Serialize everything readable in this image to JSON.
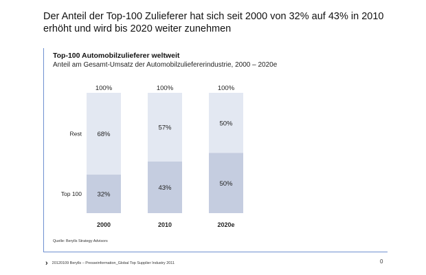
{
  "headline": "Der Anteil der Top-100 Zulieferer hat sich seit 2000 von 32% auf 43% in 2010 erhöht und wird bis 2020 weiter zunehmen",
  "chart_data": {
    "type": "bar",
    "stacked": true,
    "title": "Top-100 Automobilzulieferer weltweit",
    "subtitle": "Anteil am Gesamt-Umsatz der Automobilzuliefererindustrie, 2000 – 2020e",
    "categories": [
      "2000",
      "2010",
      "2020e"
    ],
    "totals_label": "100%",
    "ylim": [
      0,
      100
    ],
    "series": [
      {
        "name": "Top 100",
        "values": [
          32,
          43,
          50
        ],
        "labels": [
          "32%",
          "43%",
          "50%"
        ],
        "color": "#c5cde0"
      },
      {
        "name": "Rest",
        "values": [
          68,
          57,
          50
        ],
        "labels": [
          "68%",
          "57%",
          "50%"
        ],
        "color": "#e3e8f2"
      }
    ]
  },
  "source": "Quelle: Berylls Strategy Advisors",
  "footer": {
    "logo": "›",
    "text": "20120109 Berylls – Presseinformation_Global Top Supplier Industry 2011"
  },
  "page_number": "0",
  "colors": {
    "frame": "#6d8fd0"
  }
}
